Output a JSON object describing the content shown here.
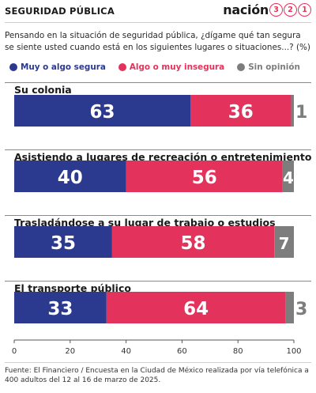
{
  "header": {
    "section": "SEGURIDAD PÚBLICA",
    "brand_word": "nación",
    "brand_digits": [
      "3",
      "2",
      "1"
    ]
  },
  "question": "Pensando en la situación de seguridad pública, ¿dígame qué tan segura se siente usted cuando está en los siguientes lugares o situaciones...? (%)",
  "legend": [
    {
      "label": "Muy o algo segura",
      "color": "#2b3a8f"
    },
    {
      "label": "Algo o muy insegura",
      "color": "#e3325c"
    },
    {
      "label": "Sin opinión",
      "color": "#7d7d7d"
    }
  ],
  "chart_data": {
    "type": "bar",
    "orientation": "horizontal",
    "stacked": true,
    "unit": "%",
    "categories": [
      "Su colonia",
      "Asistiendo a lugares de recreación o entretenimiento",
      "Trasladándose a su lugar de trabajo o estudios",
      "El transporte público"
    ],
    "series": [
      {
        "name": "Muy o algo segura",
        "color": "#2b3a8f",
        "values": [
          63,
          40,
          35,
          33
        ]
      },
      {
        "name": "Algo o muy insegura",
        "color": "#e3325c",
        "values": [
          36,
          56,
          58,
          64
        ]
      },
      {
        "name": "Sin opinión",
        "color": "#7d7d7d",
        "values": [
          1,
          4,
          7,
          3
        ]
      }
    ],
    "xlim": [
      0,
      100
    ],
    "xticks": [
      0,
      20,
      40,
      60,
      80,
      100
    ],
    "grid": false,
    "legend_position": "top"
  },
  "source": "Fuente: El Financiero / Encuesta en la Ciudad de México realizada por vía telefónica a 400 adultos del 12 al 16 de marzo de 2025."
}
